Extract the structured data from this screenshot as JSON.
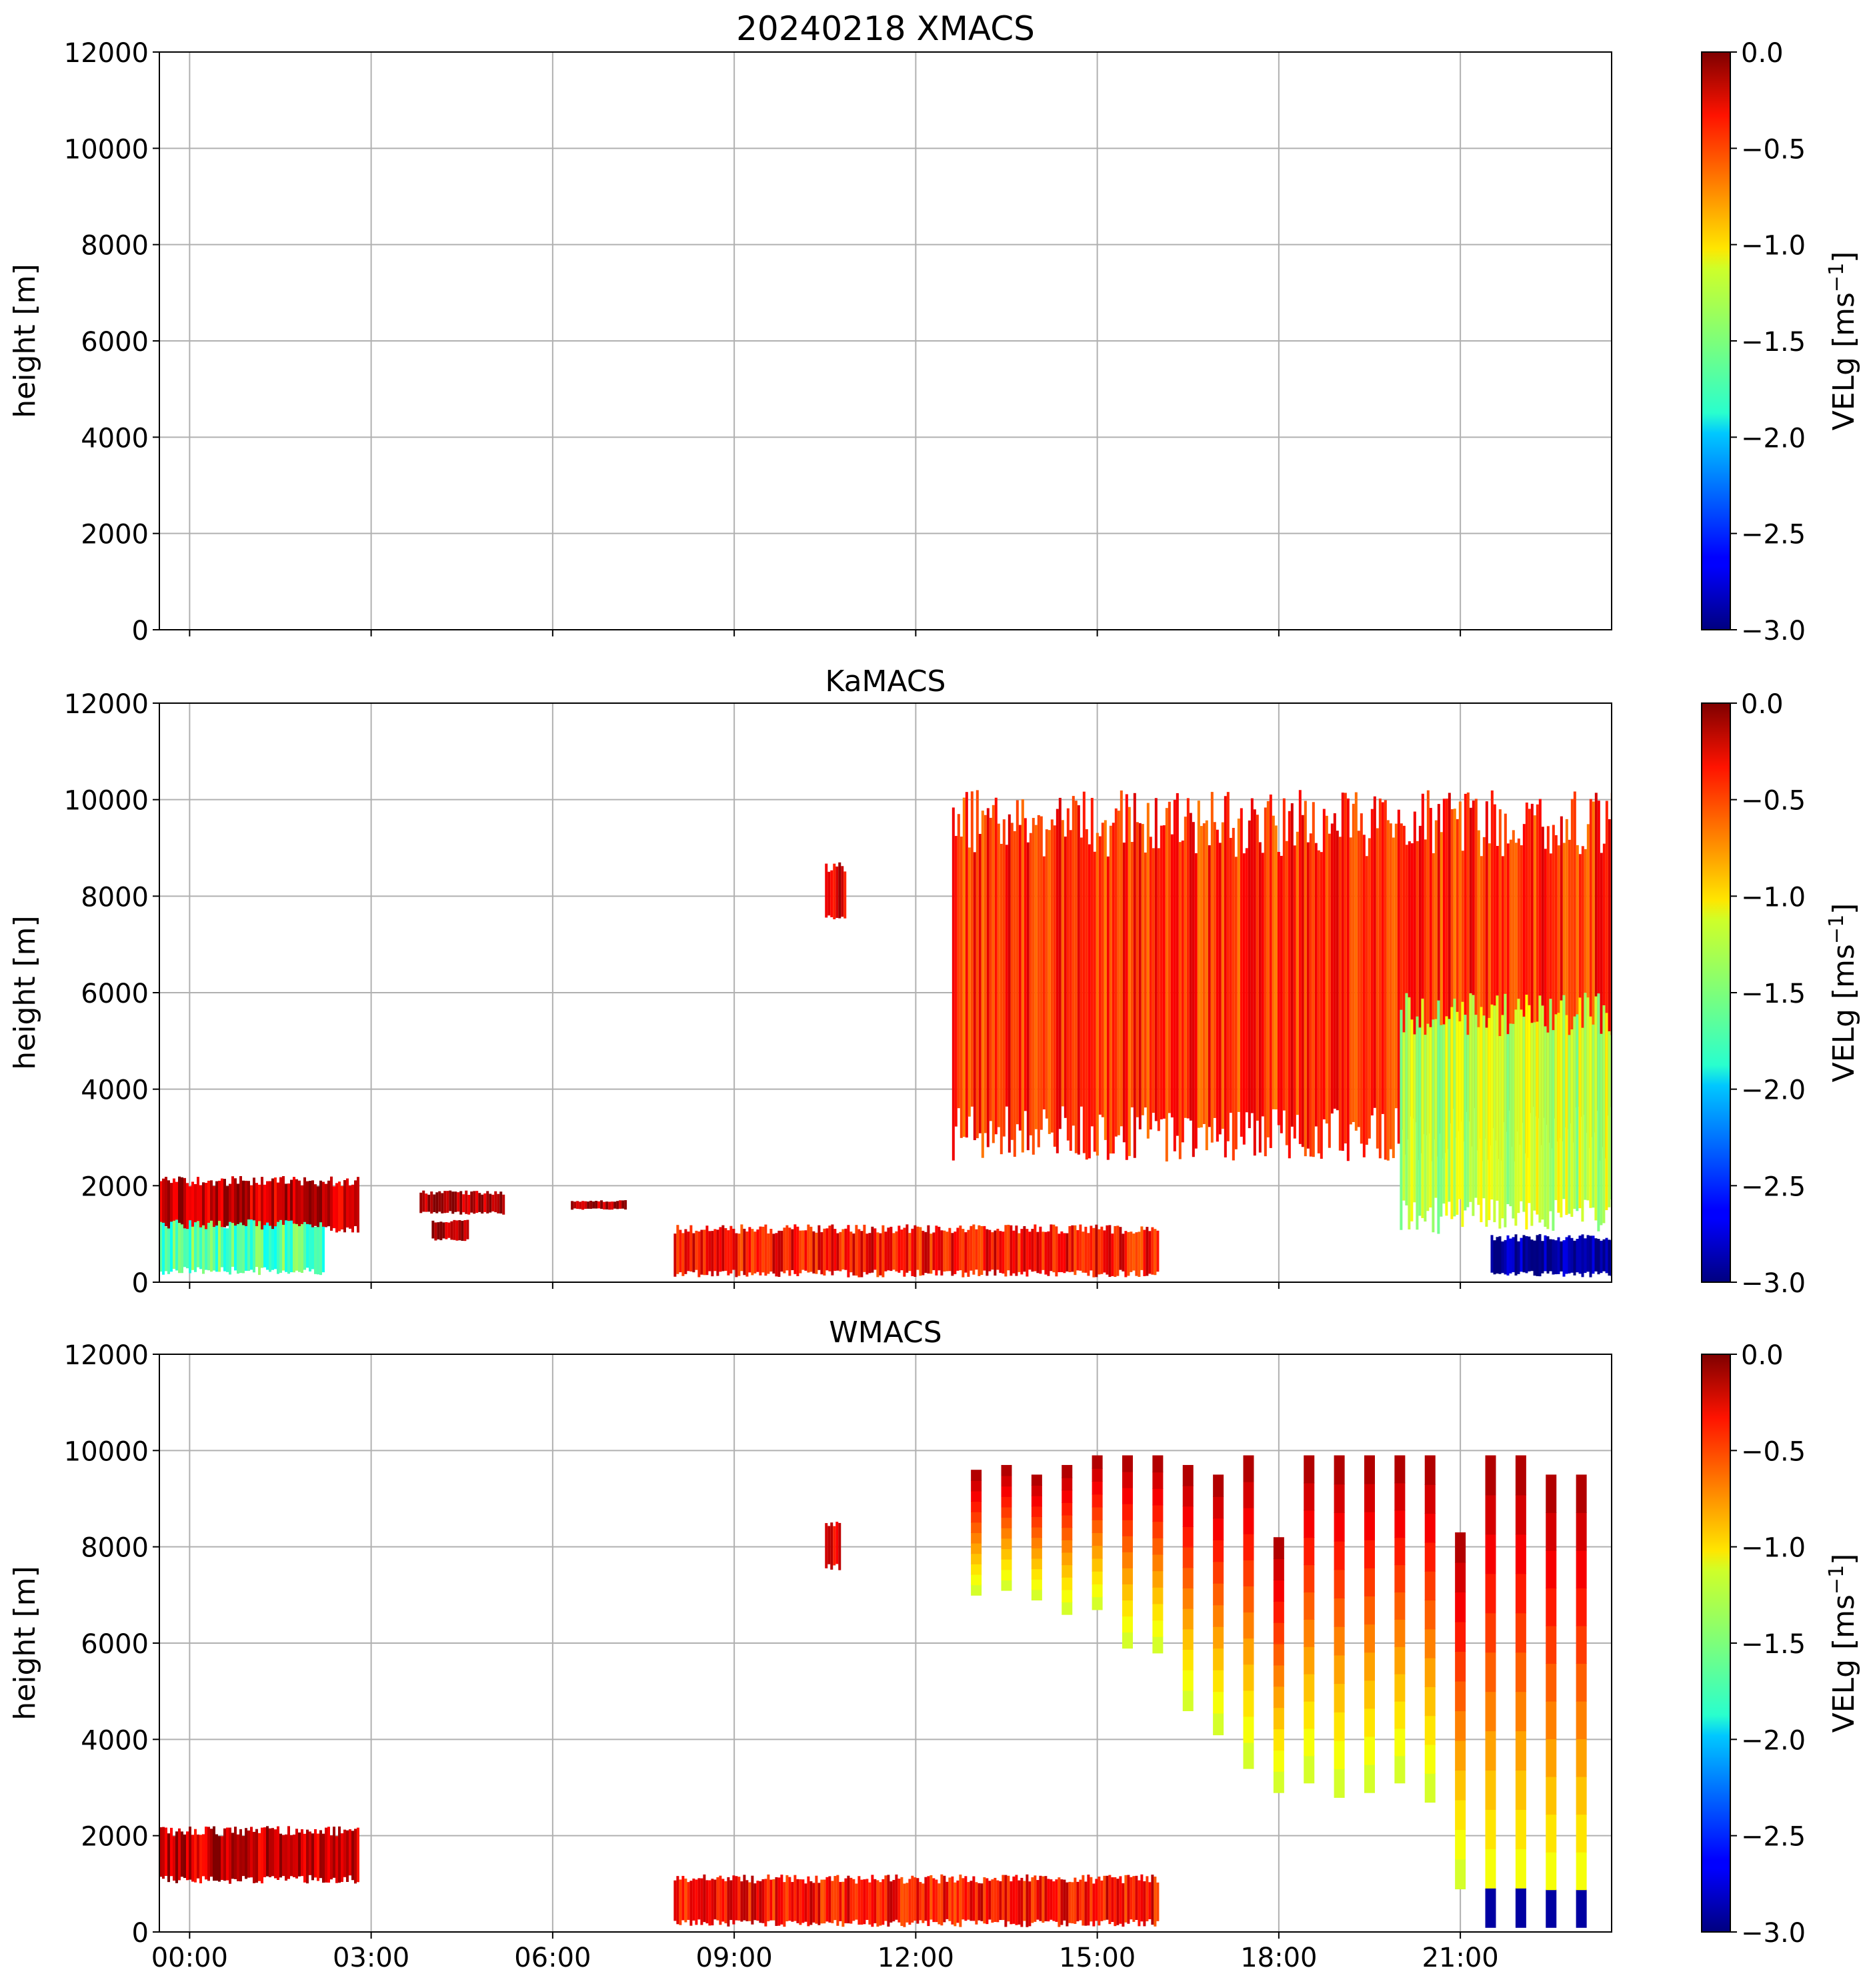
{
  "chart_data": [
    {
      "type": "heatmap",
      "panel": "XMACS",
      "title": "20240218 XMACS",
      "xlabel": "",
      "ylabel": "height [m]",
      "ylim": [
        0,
        12000
      ],
      "yticks": [
        0,
        2000,
        4000,
        6000,
        8000,
        10000,
        12000
      ],
      "ytick_labels": [
        "0",
        "2000",
        "4000",
        "6000",
        "8000",
        "10000",
        "12000"
      ],
      "xlim_hours": [
        -0.5,
        23.5
      ],
      "xtick_hours": [
        0,
        3,
        6,
        9,
        12,
        15,
        18,
        21
      ],
      "xtick_labels": [],
      "grid": true,
      "colorbar": {
        "label": "VELg [ms",
        "label_sup": "−1",
        "label_end": "]",
        "range": [
          -3.0,
          0.0
        ],
        "ticks": [
          0.0,
          -0.5,
          -1.0,
          -1.5,
          -2.0,
          -2.5,
          -3.0
        ],
        "tick_labels": [
          "0.0",
          "−0.5",
          "−1.0",
          "−1.5",
          "−2.0",
          "−2.5",
          "−3.0"
        ],
        "colormap": "jet"
      },
      "features": []
    },
    {
      "type": "heatmap",
      "panel": "KaMACS",
      "title": "KaMACS",
      "xlabel": "",
      "ylabel": "height [m]",
      "ylim": [
        0,
        12000
      ],
      "yticks": [
        0,
        2000,
        4000,
        6000,
        8000,
        10000,
        12000
      ],
      "ytick_labels": [
        "0",
        "2000",
        "4000",
        "6000",
        "8000",
        "10000",
        "12000"
      ],
      "xlim_hours": [
        -0.5,
        23.5
      ],
      "xtick_hours": [
        0,
        3,
        6,
        9,
        12,
        15,
        18,
        21
      ],
      "xtick_labels": [],
      "grid": true,
      "colorbar": {
        "label": "VELg [ms",
        "label_sup": "−1",
        "label_end": "]",
        "range": [
          -3.0,
          0.0
        ],
        "ticks": [
          0.0,
          -0.5,
          -1.0,
          -1.5,
          -2.0,
          -2.5,
          -3.0
        ],
        "tick_labels": [
          "0.0",
          "−0.5",
          "−1.0",
          "−1.5",
          "−2.0",
          "−2.5",
          "−3.0"
        ],
        "colormap": "jet"
      },
      "features": [
        {
          "name": "low cloud",
          "t0": -0.5,
          "t1": 2.8,
          "base": 1000,
          "top": 2200,
          "vel": -0.2
        },
        {
          "name": "falling streaks",
          "t0": -0.5,
          "t1": 2.2,
          "base": 150,
          "top": 1300,
          "vel": -1.6
        },
        {
          "name": "patch 04h",
          "t0": 3.8,
          "t1": 5.2,
          "base": 1400,
          "top": 1900,
          "vel": -0.1
        },
        {
          "name": "patch 04h low",
          "t0": 4.0,
          "t1": 4.6,
          "base": 850,
          "top": 1300,
          "vel": -0.1
        },
        {
          "name": "patch 06h",
          "t0": 6.3,
          "t1": 7.2,
          "base": 1500,
          "top": 1700,
          "vel": -0.1
        },
        {
          "name": "patch 10h",
          "t0": 10.5,
          "t1": 10.85,
          "base": 7500,
          "top": 8700,
          "vel": -0.3
        },
        {
          "name": "boundary layer",
          "t0": 8.0,
          "t1": 16.0,
          "base": 100,
          "top": 1200,
          "vel": -0.4
        },
        {
          "name": "upper cloud",
          "t0": 12.6,
          "t1": 23.5,
          "base": 2500,
          "top": 10200,
          "vel": -0.5
        },
        {
          "name": "precip core",
          "t0": 20.0,
          "t1": 23.5,
          "base": 1000,
          "top": 6000,
          "vel": -1.3
        },
        {
          "name": "rain",
          "t0": 21.5,
          "t1": 23.5,
          "base": 100,
          "top": 1000,
          "vel": -2.9
        }
      ]
    },
    {
      "type": "heatmap",
      "panel": "WMACS",
      "title": "WMACS",
      "xlabel": "",
      "ylabel": "height [m]",
      "ylim": [
        0,
        12000
      ],
      "yticks": [
        0,
        2000,
        4000,
        6000,
        8000,
        10000,
        12000
      ],
      "ytick_labels": [
        "0",
        "2000",
        "4000",
        "6000",
        "8000",
        "10000",
        "12000"
      ],
      "xlim_hours": [
        -0.5,
        23.5
      ],
      "xtick_hours": [
        0,
        3,
        6,
        9,
        12,
        15,
        18,
        21
      ],
      "xtick_labels": [
        "00:00",
        "03:00",
        "06:00",
        "09:00",
        "12:00",
        "15:00",
        "18:00",
        "21:00"
      ],
      "grid": true,
      "colorbar": {
        "label": "VELg [ms",
        "label_sup": "−1",
        "label_end": "]",
        "range": [
          -3.0,
          0.0
        ],
        "ticks": [
          0.0,
          -0.5,
          -1.0,
          -1.5,
          -2.0,
          -2.5,
          -3.0
        ],
        "tick_labels": [
          "0.0",
          "−0.5",
          "−1.0",
          "−1.5",
          "−2.0",
          "−2.5",
          "−3.0"
        ],
        "colormap": "jet"
      },
      "stripes": [
        {
          "t": 13.0,
          "base": 7000,
          "top": 9600
        },
        {
          "t": 13.5,
          "base": 7100,
          "top": 9700
        },
        {
          "t": 14.0,
          "base": 6900,
          "top": 9500
        },
        {
          "t": 14.5,
          "base": 6600,
          "top": 9700
        },
        {
          "t": 15.0,
          "base": 6700,
          "top": 9900
        },
        {
          "t": 15.5,
          "base": 5900,
          "top": 9900
        },
        {
          "t": 16.0,
          "base": 5800,
          "top": 9900
        },
        {
          "t": 16.5,
          "base": 4600,
          "top": 9700
        },
        {
          "t": 17.0,
          "base": 4100,
          "top": 9500
        },
        {
          "t": 17.5,
          "base": 3400,
          "top": 9900
        },
        {
          "t": 18.0,
          "base": 2900,
          "top": 8200
        },
        {
          "t": 18.5,
          "base": 3100,
          "top": 9900
        },
        {
          "t": 19.0,
          "base": 2800,
          "top": 9900
        },
        {
          "t": 19.5,
          "base": 2900,
          "top": 9900
        },
        {
          "t": 20.0,
          "base": 3100,
          "top": 9900
        },
        {
          "t": 20.5,
          "base": 2700,
          "top": 9900
        },
        {
          "t": 21.0,
          "base": 900,
          "top": 8300
        },
        {
          "t": 21.5,
          "base": 100,
          "top": 9900
        },
        {
          "t": 22.0,
          "base": 100,
          "top": 9900
        },
        {
          "t": 22.5,
          "base": 100,
          "top": 9500
        },
        {
          "t": 23.0,
          "base": 100,
          "top": 9500
        }
      ],
      "features": [
        {
          "name": "low cloud",
          "t0": -0.5,
          "t1": 2.8,
          "base": 1000,
          "top": 2200,
          "vel": -0.2
        },
        {
          "name": "patch 10h",
          "t0": 10.5,
          "t1": 10.75,
          "base": 7500,
          "top": 8600,
          "vel": -0.3
        },
        {
          "name": "boundary layer",
          "t0": 8.0,
          "t1": 16.0,
          "base": 100,
          "top": 1200,
          "vel": -0.4
        }
      ]
    }
  ]
}
